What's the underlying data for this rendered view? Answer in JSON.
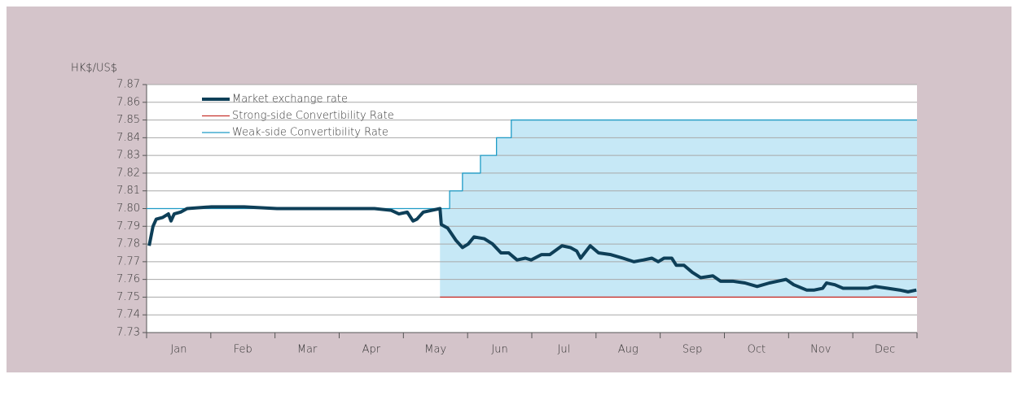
{
  "chart_data": {
    "type": "line",
    "y_label": "HK$/US$",
    "categories": [
      "Jan",
      "Feb",
      "Mar",
      "Apr",
      "May",
      "Jun",
      "Jul",
      "Aug",
      "Sep",
      "Oct",
      "Nov",
      "Dec"
    ],
    "xlim": [
      0,
      12
    ],
    "xticks": [
      0,
      1,
      2,
      3,
      4,
      5,
      6,
      7,
      8,
      9,
      10,
      11,
      12
    ],
    "ylim": [
      7.73,
      7.87
    ],
    "yticks": [
      7.73,
      7.74,
      7.75,
      7.76,
      7.77,
      7.78,
      7.79,
      {
        "value": 7.8,
        "label": "7.80"
      },
      7.81,
      7.82,
      7.83,
      7.84,
      7.85,
      7.86,
      7.87
    ],
    "grid": true,
    "legend": "top-left",
    "zone_color": "#c6e8f6",
    "series": [
      {
        "name": "Market exchange rate",
        "color": "#0e3f58",
        "width": 4,
        "x": [
          0.04,
          0.1,
          0.15,
          0.25,
          0.34,
          0.38,
          0.43,
          0.53,
          0.63,
          1.01,
          1.52,
          2.03,
          2.54,
          3.04,
          3.55,
          3.81,
          3.93,
          4.06,
          4.15,
          4.21,
          4.31,
          4.44,
          4.57,
          4.59,
          4.69,
          4.82,
          4.92,
          5.01,
          5.1,
          5.26,
          5.39,
          5.52,
          5.64,
          5.77,
          5.9,
          5.99,
          6.15,
          6.28,
          6.47,
          6.6,
          6.7,
          6.76,
          6.91,
          7.04,
          7.23,
          7.42,
          7.59,
          7.74,
          7.87,
          7.97,
          8.06,
          8.18,
          8.25,
          8.37,
          8.5,
          8.63,
          8.82,
          8.94,
          9.13,
          9.32,
          9.51,
          9.7,
          9.83,
          9.96,
          10.08,
          10.28,
          10.4,
          10.53,
          10.59,
          10.72,
          10.85,
          11.04,
          11.23,
          11.35,
          11.54,
          11.73,
          11.86,
          11.99
        ],
        "values": [
          7.779,
          7.79,
          7.794,
          7.795,
          7.797,
          7.793,
          7.797,
          7.798,
          7.8,
          7.801,
          7.801,
          7.8,
          7.8,
          7.8,
          7.8,
          7.799,
          7.797,
          7.798,
          7.793,
          7.794,
          7.798,
          7.799,
          7.8,
          7.791,
          7.789,
          7.782,
          7.778,
          7.78,
          7.784,
          7.783,
          7.78,
          7.775,
          7.775,
          7.771,
          7.772,
          7.771,
          7.774,
          7.774,
          7.779,
          7.778,
          7.776,
          7.772,
          7.779,
          7.775,
          7.774,
          7.772,
          7.77,
          7.771,
          7.772,
          7.77,
          7.772,
          7.772,
          7.768,
          7.768,
          7.764,
          7.761,
          7.762,
          7.759,
          7.759,
          7.758,
          7.756,
          7.758,
          7.759,
          7.76,
          7.757,
          7.754,
          7.754,
          7.755,
          7.758,
          7.757,
          7.755,
          7.755,
          7.755,
          7.756,
          7.755,
          7.754,
          7.753,
          7.754
        ]
      },
      {
        "name": "Strong-side Convertibility Rate",
        "color": "#c8332e",
        "width": 1.3,
        "x": [
          4.57,
          12
        ],
        "values": [
          7.75,
          7.75
        ]
      },
      {
        "name": "Weak-side Convertibility Rate",
        "color": "#1f9cc6",
        "width": 1.3,
        "x": [
          0,
          4.57,
          4.72,
          4.72,
          4.92,
          4.92,
          5.2,
          5.2,
          5.45,
          5.45,
          5.68,
          5.68,
          12
        ],
        "values": [
          7.8,
          7.8,
          7.8,
          7.81,
          7.81,
          7.82,
          7.82,
          7.83,
          7.83,
          7.84,
          7.84,
          7.85,
          7.85
        ]
      }
    ]
  }
}
